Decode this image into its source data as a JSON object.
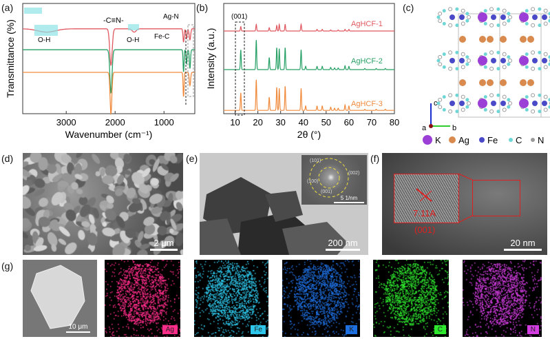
{
  "panels": {
    "a": "(a)",
    "b": "(b)",
    "c": "(c)",
    "d": "(d)",
    "e": "(e)",
    "f": "(f)",
    "g": "(g)"
  },
  "chart_data": [
    {
      "type": "line",
      "title": "",
      "xlabel": "Wavenumber (cm⁻¹)",
      "ylabel": "Transmittance (%)",
      "xlim": [
        3890,
        370
      ],
      "ylim": [
        0,
        1
      ],
      "xticks": [
        3000,
        2000,
        1000
      ],
      "grid": false,
      "annotations": [
        "-C≡N-",
        "O-H",
        "O-H",
        "Ag-N",
        "Fe-C"
      ],
      "series": [
        {
          "name": "AgHCF-1",
          "color": "#e0585f",
          "baseline": 0.77,
          "dips": [
            [
              3400,
              0.03,
              180
            ],
            [
              2085,
              0.33,
              25
            ],
            [
              1610,
              0.03,
              40
            ],
            [
              600,
              0.12,
              12
            ],
            [
              540,
              0.09,
              12
            ],
            [
              470,
              0.1,
              15
            ]
          ]
        },
        {
          "name": "AgHCF-2",
          "color": "#27a065",
          "baseline": 0.58,
          "dips": [
            [
              2085,
              0.39,
              22
            ],
            [
              600,
              0.2,
              10
            ],
            [
              540,
              0.13,
              10
            ],
            [
              470,
              0.17,
              12
            ]
          ]
        },
        {
          "name": "AgHCF-3",
          "color": "#f08a3c",
          "baseline": 0.375,
          "dips": [
            [
              2085,
              0.375,
              18
            ],
            [
              600,
              0.22,
              10
            ],
            [
              470,
              0.12,
              14
            ]
          ]
        }
      ]
    },
    {
      "type": "line",
      "title": "",
      "xlabel": "2θ (°)",
      "ylabel": "Intensity (a.u.)",
      "xlim": [
        5,
        80
      ],
      "ylim": [
        0,
        1
      ],
      "xticks": [
        10,
        20,
        30,
        40,
        50,
        60,
        70,
        80
      ],
      "grid": false,
      "annotations": [
        "(001)"
      ],
      "series": [
        {
          "name": "AgHCF-1",
          "color": "#e0585f",
          "baseline": 0.75,
          "peaks": [
            [
              12.5,
              0.04
            ],
            [
              19.3,
              0.06
            ],
            [
              25,
              0.03
            ],
            [
              28.3,
              0.05
            ],
            [
              29.4,
              0.06
            ],
            [
              32,
              0.06
            ],
            [
              39,
              0.06
            ],
            [
              46,
              0.015
            ],
            [
              48.3,
              0.015
            ],
            [
              52,
              0.01
            ],
            [
              55.3,
              0.01
            ],
            [
              58.3,
              0.015
            ],
            [
              60,
              0.015
            ]
          ]
        },
        {
          "name": "AgHCF-2",
          "color": "#27a065",
          "baseline": 0.4,
          "peaks": [
            [
              12.5,
              0.18
            ],
            [
              19.3,
              0.27
            ],
            [
              25,
              0.11
            ],
            [
              28.3,
              0.2
            ],
            [
              29.4,
              0.19
            ],
            [
              32,
              0.2
            ],
            [
              39,
              0.18
            ],
            [
              41,
              0.03
            ],
            [
              46,
              0.03
            ],
            [
              48.3,
              0.03
            ],
            [
              52,
              0.02
            ],
            [
              53.7,
              0.015
            ],
            [
              55.3,
              0.015
            ],
            [
              58.3,
              0.035
            ],
            [
              60,
              0.03
            ],
            [
              67,
              0.01
            ],
            [
              72,
              0.01
            ],
            [
              76,
              0.01
            ]
          ]
        },
        {
          "name": "AgHCF-3",
          "color": "#f08a3c",
          "baseline": 0.03,
          "peaks": [
            [
              12.5,
              0.16
            ],
            [
              19.3,
              0.28
            ],
            [
              25,
              0.12
            ],
            [
              28.3,
              0.21
            ],
            [
              29.4,
              0.2
            ],
            [
              32,
              0.22
            ],
            [
              39,
              0.2
            ],
            [
              41,
              0.04
            ],
            [
              46,
              0.04
            ],
            [
              48.3,
              0.04
            ],
            [
              52,
              0.03
            ],
            [
              53.7,
              0.02
            ],
            [
              55.3,
              0.02
            ],
            [
              58.3,
              0.05
            ],
            [
              60,
              0.04
            ],
            [
              67,
              0.01
            ],
            [
              72,
              0.01
            ],
            [
              76,
              0.01
            ]
          ]
        }
      ]
    }
  ],
  "crystal": {
    "axes": {
      "c": "c",
      "a": "a",
      "b": "b"
    },
    "legend": [
      {
        "label": "K",
        "color": "#9b3fd6"
      },
      {
        "label": "Ag",
        "color": "#d98a4e"
      },
      {
        "label": "Fe",
        "color": "#4a4ac8"
      },
      {
        "label": "C",
        "color": "#6fd6d6"
      },
      {
        "label": "N",
        "color": "#9a9a9a"
      }
    ]
  },
  "sem": {
    "scale": "2 μm"
  },
  "tem": {
    "scale": "200 nm",
    "inset_scale": "5 1/nm",
    "rings": [
      "(101)",
      "(002)",
      "(100)",
      "(001)"
    ]
  },
  "hrtem": {
    "scale": "20 nm",
    "spacing": "7.11A",
    "plane": "(001)"
  },
  "eds": {
    "scale": "10 μm",
    "maps": [
      {
        "element": "Ag",
        "color": "#ff2d8a"
      },
      {
        "element": "Fe",
        "color": "#2ec6ea"
      },
      {
        "element": "K",
        "color": "#1e6fe0"
      },
      {
        "element": "C",
        "color": "#2ee82e"
      },
      {
        "element": "N",
        "color": "#d23ce0"
      }
    ]
  }
}
